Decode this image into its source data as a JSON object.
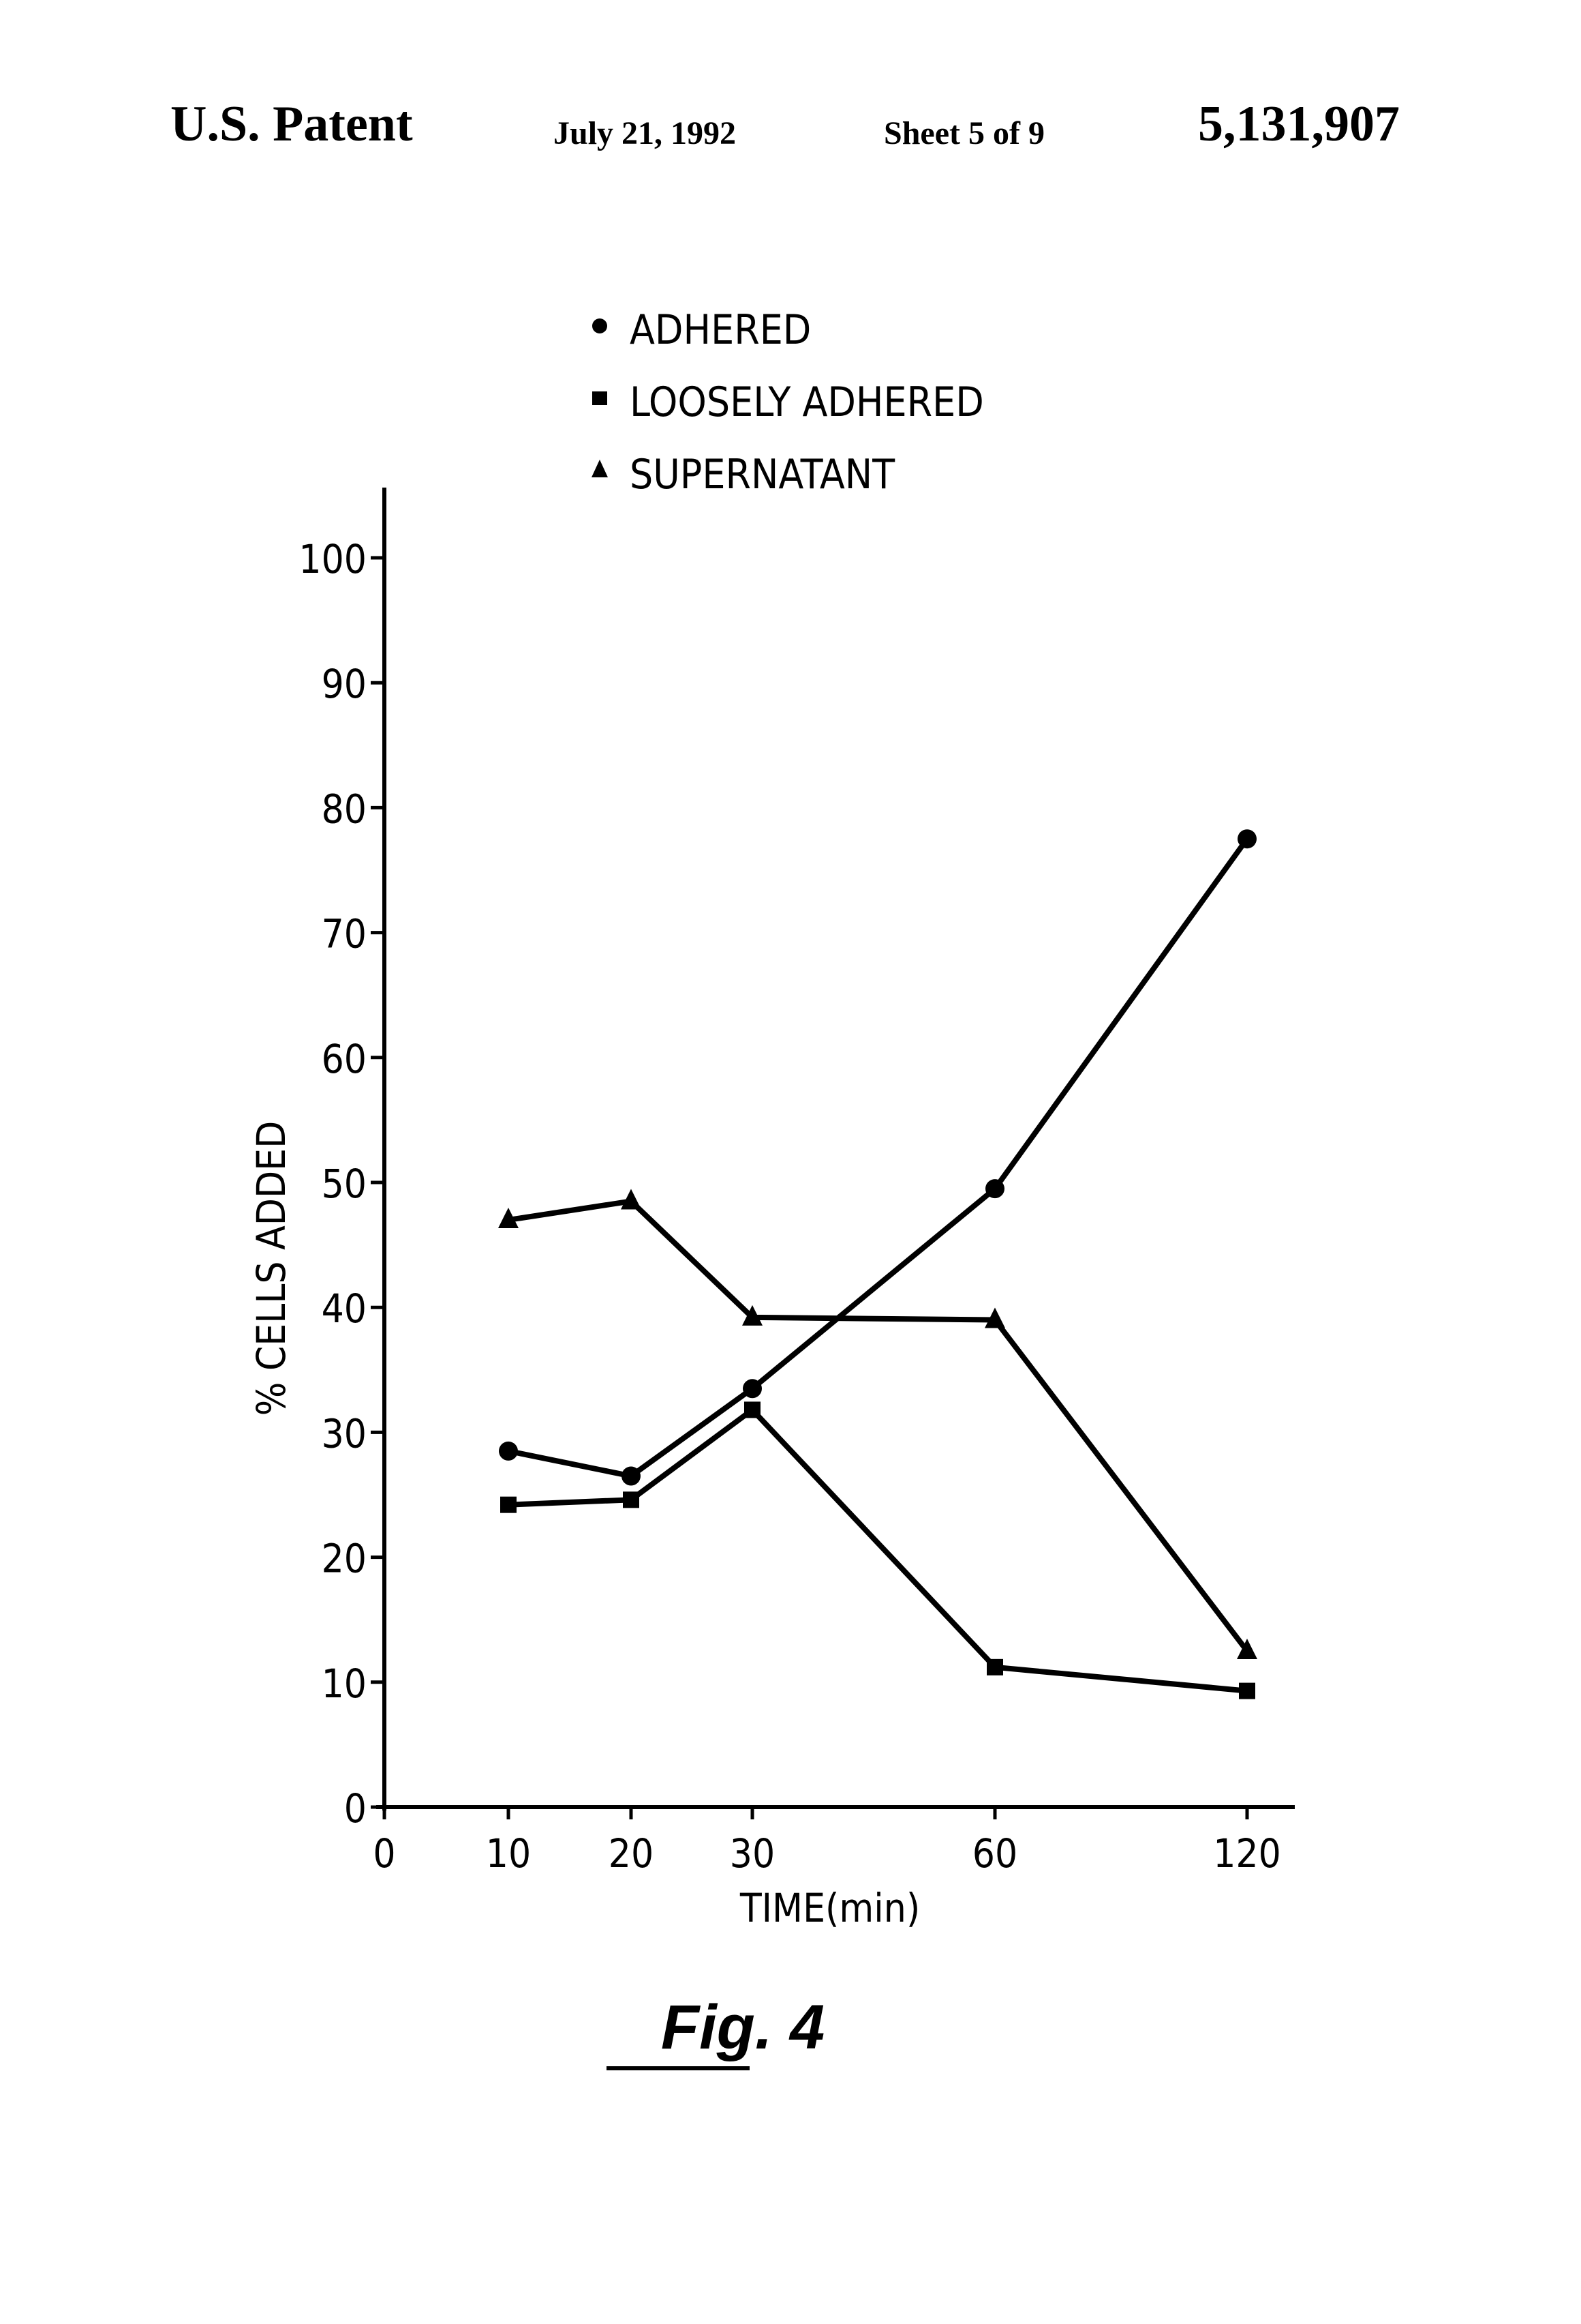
{
  "header": {
    "title": "U.S. Patent",
    "date": "July 21, 1992",
    "sheet": "Sheet 5 of 9",
    "patent_number": "5,131,907"
  },
  "figure_label": "Fig. 4",
  "chart_data": {
    "type": "line",
    "xlabel": "TIME(min)",
    "ylabel": "% CELLS ADDED",
    "categories": [
      "0",
      "10",
      "20",
      "30",
      "60",
      "120"
    ],
    "ylim": [
      0,
      100
    ],
    "yticks": [
      "0",
      "10",
      "20",
      "30",
      "40",
      "50",
      "60",
      "70",
      "80",
      "90",
      "100"
    ],
    "legend_position": "top-center",
    "grid": false,
    "series": [
      {
        "name": "ADHERED",
        "marker": "circle",
        "x": [
          "10",
          "20",
          "30",
          "60",
          "120"
        ],
        "values": [
          28.5,
          26.5,
          33.5,
          49.5,
          77.5
        ]
      },
      {
        "name": "LOOSELY ADHERED",
        "marker": "square",
        "x": [
          "10",
          "20",
          "30",
          "60",
          "120"
        ],
        "values": [
          24.2,
          24.6,
          31.8,
          11.2,
          9.3
        ]
      },
      {
        "name": "SUPERNATANT",
        "marker": "triangle",
        "x": [
          "10",
          "20",
          "30",
          "60",
          "120"
        ],
        "values": [
          47,
          48.5,
          39.2,
          39,
          12.5
        ]
      }
    ]
  }
}
